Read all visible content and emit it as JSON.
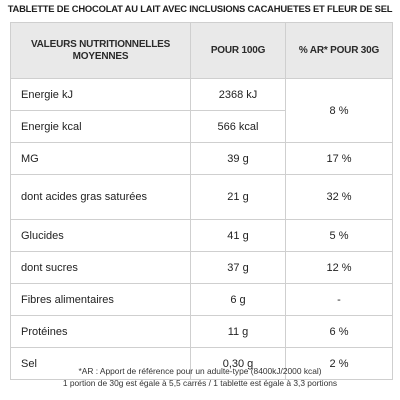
{
  "title": "TABLETTE DE CHOCOLAT AU LAIT AVEC INCLUSIONS CACAHUETES ET FLEUR DE SEL",
  "table": {
    "headers": {
      "label": "VALEURS NUTRITIONNELLES MOYENNES",
      "per100": "POUR 100G",
      "ar": "% AR* POUR 30G"
    },
    "rows": [
      {
        "label": "Energie kJ",
        "per100": "2368 kJ"
      },
      {
        "label": "Energie kcal",
        "per100": "566 kcal"
      },
      {
        "label": "MG",
        "per100": "39 g",
        "ar": "17 %"
      },
      {
        "label": "dont acides gras saturées",
        "per100": "21 g",
        "ar": "32 %"
      },
      {
        "label": "Glucides",
        "per100": "41 g",
        "ar": "5 %"
      },
      {
        "label": "dont sucres",
        "per100": "37 g",
        "ar": "12 %"
      },
      {
        "label": "Fibres alimentaires",
        "per100": "6 g",
        "ar": "-"
      },
      {
        "label": "Protéines",
        "per100": "11 g",
        "ar": "6 %"
      },
      {
        "label": "Sel",
        "per100": "0,30 g",
        "ar": "2 %"
      }
    ],
    "energy_ar": "8 %"
  },
  "footnote": {
    "line1": "*AR : Apport de référence pour un adulte-type (8400kJ/2000 kcal)",
    "line2": "1 portion de 30g est égale à 5,5 carrés / 1 tablette est égale à 3,3 portions"
  }
}
